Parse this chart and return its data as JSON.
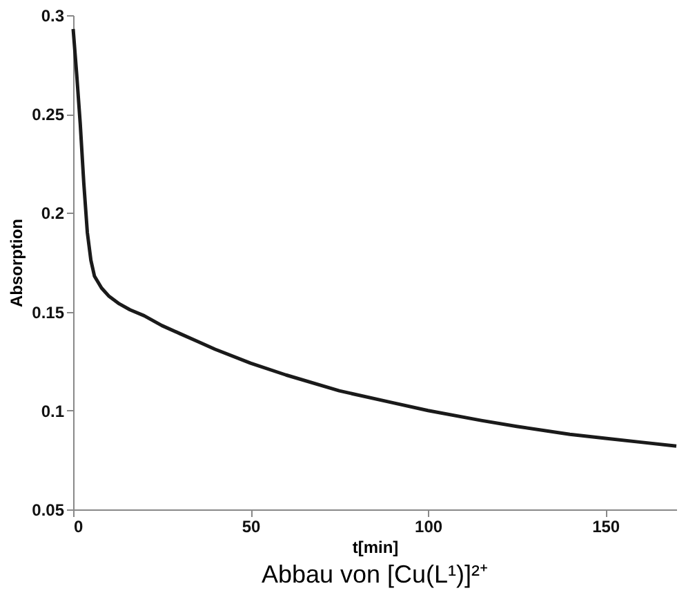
{
  "chart_data": {
    "type": "line",
    "title": "Abbau von [Cu(L¹)]²⁺",
    "xlabel": "t[min]",
    "ylabel": "Absorption",
    "x": [
      0,
      1,
      2,
      3,
      4,
      5,
      6,
      8,
      10,
      13,
      16,
      20,
      25,
      30,
      35,
      40,
      50,
      60,
      75,
      90,
      100,
      115,
      125,
      140,
      150,
      160,
      170
    ],
    "series": [
      {
        "color": "#1a1a1a",
        "values": [
          0.293,
          0.27,
          0.245,
          0.215,
          0.19,
          0.176,
          0.168,
          0.162,
          0.158,
          0.154,
          0.151,
          0.148,
          0.143,
          0.139,
          0.135,
          0.131,
          0.124,
          0.118,
          0.11,
          0.104,
          0.1,
          0.095,
          0.092,
          0.088,
          0.086,
          0.084,
          0.082
        ]
      }
    ],
    "xlim": [
      0,
      170
    ],
    "xticks": [
      0,
      50,
      100,
      150
    ],
    "ylim": [
      0.05,
      0.3
    ],
    "yticks": [
      0.05,
      0.1,
      0.15,
      0.2,
      0.25,
      0.3
    ],
    "grid": false,
    "marker": "none",
    "line_style": "solid"
  }
}
